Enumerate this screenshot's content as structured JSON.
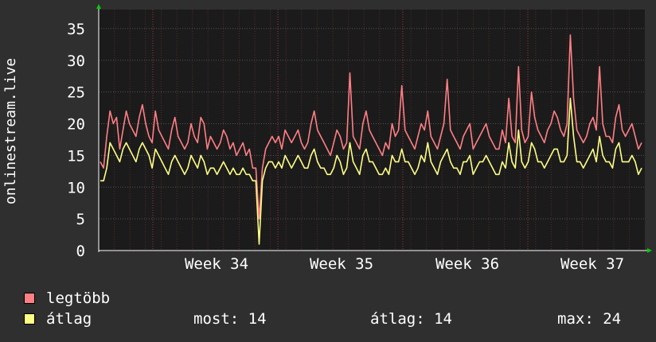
{
  "chart_data": {
    "type": "line",
    "ylabel": "onlinestream.live",
    "x_ticks": [
      "Week 34",
      "Week 35",
      "Week 36",
      "Week 37"
    ],
    "y_ticks": [
      "0",
      "5",
      "10",
      "15",
      "20",
      "25",
      "30",
      "35"
    ],
    "ylim": [
      0,
      38
    ],
    "grid": true,
    "series": [
      {
        "name": "legtöbb",
        "color": "#ff7f85",
        "values": [
          14,
          13,
          18,
          22,
          20,
          21,
          16,
          19,
          22,
          20,
          19,
          18,
          21,
          23,
          20,
          18,
          17,
          22,
          19,
          18,
          17,
          16,
          19,
          21,
          18,
          17,
          16,
          17,
          20,
          18,
          17,
          21,
          20,
          16,
          18,
          17,
          16,
          17,
          19,
          18,
          16,
          17,
          15,
          16,
          17,
          15,
          16,
          13,
          13,
          5,
          13,
          16,
          17,
          18,
          17,
          18,
          16,
          19,
          18,
          17,
          18,
          19,
          17,
          16,
          17,
          20,
          22,
          19,
          18,
          17,
          16,
          15,
          17,
          19,
          18,
          16,
          17,
          28,
          18,
          17,
          16,
          20,
          22,
          19,
          18,
          17,
          16,
          15,
          17,
          16,
          20,
          18,
          19,
          26,
          19,
          18,
          17,
          16,
          18,
          20,
          19,
          22,
          18,
          17,
          16,
          18,
          20,
          27,
          19,
          18,
          17,
          16,
          18,
          19,
          20,
          16,
          17,
          18,
          19,
          20,
          18,
          17,
          16,
          16,
          19,
          17,
          24,
          18,
          17,
          29,
          19,
          17,
          18,
          25,
          21,
          19,
          18,
          17,
          19,
          20,
          22,
          21,
          19,
          18,
          20,
          34,
          24,
          19,
          18,
          17,
          18,
          20,
          21,
          19,
          29,
          20,
          18,
          18,
          17,
          21,
          23,
          19,
          18,
          19,
          20,
          18,
          16,
          17
        ]
      },
      {
        "name": "átlag",
        "color": "#ffff85",
        "values": [
          11,
          11,
          13,
          17,
          16,
          15,
          14,
          16,
          17,
          16,
          15,
          14,
          16,
          17,
          16,
          15,
          13,
          16,
          15,
          14,
          13,
          12,
          14,
          15,
          14,
          13,
          12,
          13,
          15,
          14,
          13,
          15,
          14,
          12,
          13,
          13,
          12,
          13,
          14,
          13,
          12,
          13,
          12,
          12,
          13,
          12,
          12,
          11,
          11,
          1,
          11,
          13,
          14,
          14,
          13,
          14,
          13,
          15,
          14,
          13,
          14,
          15,
          14,
          13,
          13,
          15,
          16,
          14,
          13,
          13,
          12,
          12,
          13,
          15,
          14,
          12,
          13,
          17,
          14,
          13,
          12,
          15,
          16,
          14,
          14,
          13,
          12,
          12,
          13,
          12,
          15,
          14,
          14,
          16,
          14,
          14,
          13,
          12,
          13,
          15,
          14,
          17,
          14,
          13,
          12,
          14,
          15,
          16,
          14,
          13,
          13,
          12,
          14,
          14,
          15,
          12,
          13,
          14,
          14,
          15,
          14,
          13,
          12,
          12,
          14,
          13,
          17,
          14,
          13,
          19,
          14,
          13,
          14,
          17,
          16,
          14,
          14,
          13,
          14,
          15,
          16,
          16,
          14,
          14,
          15,
          24,
          18,
          14,
          14,
          13,
          14,
          15,
          16,
          14,
          18,
          15,
          14,
          14,
          13,
          16,
          17,
          14,
          14,
          14,
          15,
          14,
          12,
          13
        ]
      }
    ]
  },
  "legend": {
    "max_label": "legtöbb",
    "avg_label": "átlag",
    "stats": {
      "now": "most: 14",
      "avg": "átlag: 14",
      "max": "max: 24"
    }
  },
  "colors": {
    "background": "#2f2f2f",
    "plot_bg": "#1b1b1b",
    "grid": "#555555",
    "minor_grid": "#5a2a2a",
    "axis_arrow": "#00cc00"
  }
}
